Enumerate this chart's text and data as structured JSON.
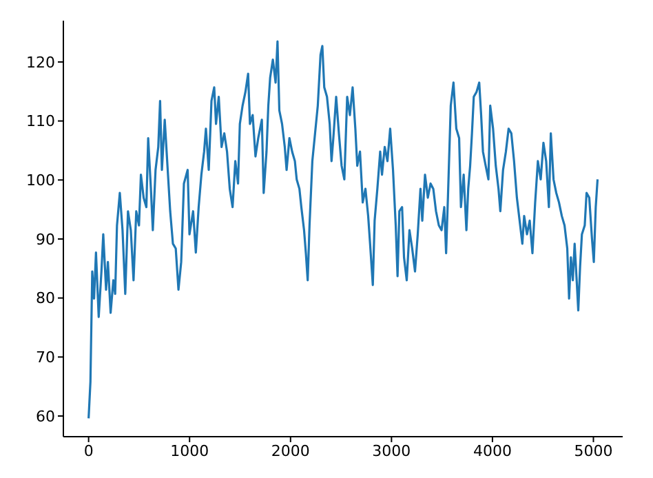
{
  "chart_data": {
    "type": "line",
    "x": [
      0,
      18,
      36,
      54,
      73,
      100,
      127,
      145,
      173,
      191,
      218,
      245,
      263,
      281,
      309,
      336,
      363,
      390,
      418,
      445,
      472,
      499,
      518,
      545,
      572,
      590,
      617,
      636,
      663,
      690,
      708,
      726,
      754,
      781,
      808,
      835,
      863,
      890,
      917,
      944,
      981,
      999,
      1035,
      1062,
      1090,
      1117,
      1144,
      1162,
      1190,
      1217,
      1244,
      1262,
      1289,
      1317,
      1344,
      1371,
      1398,
      1426,
      1453,
      1480,
      1498,
      1525,
      1553,
      1580,
      1598,
      1625,
      1653,
      1680,
      1716,
      1734,
      1762,
      1780,
      1798,
      1825,
      1852,
      1871,
      1889,
      1916,
      1943,
      1961,
      1989,
      2016,
      2043,
      2061,
      2088,
      2107,
      2134,
      2152,
      2170,
      2188,
      2216,
      2243,
      2270,
      2297,
      2315,
      2334,
      2361,
      2388,
      2406,
      2424,
      2452,
      2479,
      2506,
      2533,
      2561,
      2588,
      2615,
      2642,
      2661,
      2688,
      2715,
      2742,
      2769,
      2788,
      2815,
      2833,
      2860,
      2888,
      2906,
      2933,
      2960,
      2987,
      3015,
      3042,
      3060,
      3078,
      3105,
      3124,
      3151,
      3178,
      3205,
      3233,
      3260,
      3287,
      3305,
      3332,
      3360,
      3387,
      3414,
      3441,
      3469,
      3496,
      3523,
      3541,
      3559,
      3587,
      3614,
      3642,
      3670,
      3688,
      3715,
      3742,
      3760,
      3779,
      3797,
      3815,
      3842,
      3869,
      3888,
      3906,
      3933,
      3960,
      3978,
      4006,
      4033,
      4060,
      4078,
      4105,
      4133,
      4160,
      4187,
      4214,
      4242,
      4269,
      4296,
      4314,
      4342,
      4369,
      4396,
      4423,
      4450,
      4478,
      4505,
      4532,
      4559,
      4578,
      4605,
      4632,
      4659,
      4687,
      4714,
      4741,
      4759,
      4777,
      4796,
      4814,
      4832,
      4850,
      4868,
      4886,
      4914,
      4932,
      4959,
      4986,
      5004,
      5023,
      5041
    ],
    "series": [
      {
        "color": "#1f77b4",
        "values": [
          59.6,
          65.8,
          84.5,
          79.9,
          87.7,
          76.8,
          84.5,
          90.8,
          81.4,
          86.1,
          77.5,
          83.0,
          80.7,
          92.3,
          97.8,
          91.5,
          80.7,
          94.7,
          91.5,
          83.0,
          94.7,
          92.3,
          100.9,
          97.0,
          95.4,
          107.1,
          98.5,
          91.5,
          101.7,
          105.6,
          113.4,
          101.7,
          110.2,
          102.4,
          94.7,
          89.2,
          88.4,
          81.4,
          86.1,
          99.4,
          101.7,
          90.8,
          94.7,
          87.7,
          95.4,
          100.9,
          104.8,
          108.7,
          101.7,
          113.4,
          115.7,
          109.5,
          114.1,
          105.6,
          107.9,
          104.8,
          98.5,
          95.4,
          103.2,
          99.4,
          109.5,
          112.6,
          114.9,
          118.0,
          109.5,
          111.0,
          104.0,
          107.1,
          110.2,
          97.8,
          104.8,
          112.6,
          117.3,
          120.4,
          116.5,
          123.5,
          111.8,
          109.5,
          105.6,
          101.7,
          107.1,
          104.8,
          103.2,
          100.1,
          98.5,
          95.4,
          91.5,
          87.6,
          83.0,
          92.3,
          103.2,
          107.9,
          112.6,
          121.2,
          122.7,
          115.7,
          114.1,
          109.5,
          103.2,
          107.1,
          114.1,
          107.9,
          102.4,
          100.1,
          114.1,
          111.0,
          115.7,
          108.7,
          102.4,
          104.8,
          96.2,
          98.5,
          93.9,
          89.2,
          82.2,
          93.1,
          98.5,
          104.8,
          100.9,
          105.6,
          103.2,
          108.7,
          101.7,
          92.3,
          83.7,
          94.7,
          95.4,
          86.9,
          83.0,
          91.5,
          88.4,
          84.5,
          90.8,
          98.5,
          93.1,
          100.9,
          97.0,
          99.4,
          98.5,
          94.7,
          92.3,
          91.5,
          95.4,
          87.6,
          97.0,
          112.6,
          116.5,
          108.7,
          107.1,
          95.4,
          100.9,
          91.5,
          98.5,
          102.4,
          107.9,
          114.1,
          114.9,
          116.5,
          111.0,
          104.8,
          102.4,
          100.1,
          112.6,
          108.7,
          102.4,
          98.5,
          94.7,
          101.7,
          104.8,
          108.7,
          107.9,
          103.2,
          97.0,
          93.1,
          89.2,
          93.9,
          90.8,
          93.1,
          87.6,
          96.2,
          103.2,
          100.1,
          106.3,
          103.2,
          95.4,
          107.9,
          100.1,
          97.8,
          96.2,
          93.9,
          92.3,
          88.4,
          79.9,
          86.9,
          83.0,
          89.2,
          83.7,
          77.9,
          85.3,
          90.8,
          92.3,
          97.8,
          97.0,
          90.0,
          86.1,
          95.4,
          100.1
        ]
      }
    ],
    "xlim": [
      -250,
      5290
    ],
    "ylim": [
      56.5,
      127
    ],
    "xticks": [
      0,
      1000,
      2000,
      3000,
      4000,
      5000
    ],
    "yticks": [
      60,
      70,
      80,
      90,
      100,
      110,
      120
    ],
    "grid": false,
    "legend": false,
    "marker": "none",
    "line_style": "solid"
  }
}
